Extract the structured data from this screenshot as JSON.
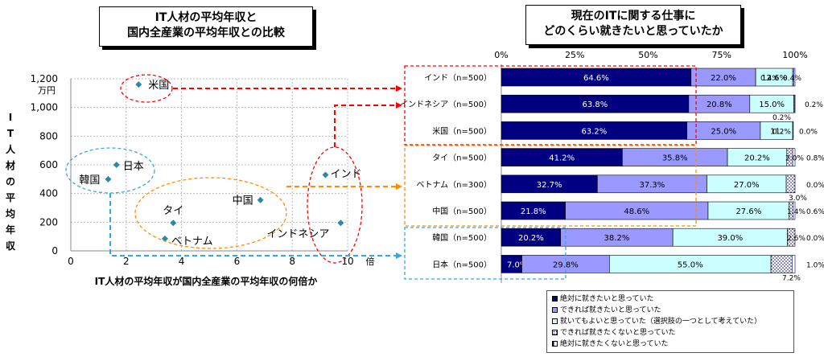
{
  "left_title": {
    "line1": "IT人材の平均年収と",
    "line2": "国内全産業の平均年収との比較"
  },
  "right_title": {
    "line1": "現在のITに関する仕事に",
    "line2": "どのくらい就きたいと思っていたか"
  },
  "chart_data": [
    {
      "type": "scatter",
      "title": "IT人材の平均年収と国内全産業の平均年収との比較",
      "xlabel": "IT人材の平均年収が国内全産業の平均年収の何倍か",
      "x_unit": "倍",
      "ylabel": "IT人材の平均年収",
      "y_unit": "万円",
      "xlim": [
        0,
        10
      ],
      "ylim": [
        0,
        1200
      ],
      "xticks": [
        0,
        2,
        4,
        6,
        8,
        10
      ],
      "yticks": [
        0,
        200,
        400,
        600,
        800,
        1000,
        1200
      ],
      "x_tick_labels": [
        "0",
        "2",
        "4",
        "6",
        "8",
        "10"
      ],
      "y_tick_labels": [
        "0",
        "200",
        "400",
        "600",
        "800",
        "1,000",
        "1,200"
      ],
      "grid": true,
      "color": "#2e86a8",
      "points": [
        {
          "label": "米国",
          "x": 2.45,
          "y": 1160
        },
        {
          "label": "日本",
          "x": 1.65,
          "y": 600
        },
        {
          "label": "韓国",
          "x": 1.35,
          "y": 500
        },
        {
          "label": "インド",
          "x": 9.2,
          "y": 530
        },
        {
          "label": "中国",
          "x": 6.85,
          "y": 355
        },
        {
          "label": "タイ",
          "x": 3.7,
          "y": 195
        },
        {
          "label": "ベトナム",
          "x": 3.4,
          "y": 85
        },
        {
          "label": "インドネシア",
          "x": 9.75,
          "y": 195
        }
      ]
    },
    {
      "type": "bar",
      "orientation": "horizontal",
      "stacked": "100%",
      "title": "現在のITに関する仕事にどのくらい就きたいと思っていたか",
      "xlim": [
        0,
        100
      ],
      "x_tick_labels": [
        "0%",
        "25%",
        "50%",
        "75%",
        "100%"
      ],
      "categories": [
        "インド（n=500）",
        "インドネシア（n=500）",
        "米国（n=500）",
        "タイ（n=500）",
        "ベトナム（n=300）",
        "中国（n=500）",
        "韓国（n=500）",
        "日本（n=500）"
      ],
      "legend_position": "bottom",
      "series": [
        {
          "name": "絶対に就きたいと思っていた",
          "color": "#000080",
          "values": [
            64.6,
            63.8,
            63.2,
            41.2,
            32.7,
            21.8,
            20.2,
            7.0
          ],
          "labels": [
            "64.6%",
            "63.8%",
            "63.2%",
            "41.2%",
            "32.7%",
            "21.8%",
            "20.2%",
            "7.0%"
          ]
        },
        {
          "name": "できれば就きたいと思っていた",
          "color": "#9999ff",
          "values": [
            22.0,
            20.8,
            25.0,
            35.8,
            37.3,
            48.6,
            38.2,
            29.8
          ],
          "labels": [
            "22.0%",
            "20.8%",
            "25.0%",
            "35.8%",
            "37.3%",
            "48.6%",
            "38.2%",
            "29.8%"
          ]
        },
        {
          "name": "就いてもよいと思っていた（選択肢の一つとして考えていた）",
          "color": "#ccffff",
          "values": [
            12.6,
            15.0,
            11.0,
            20.2,
            27.0,
            27.6,
            39.0,
            55.0
          ],
          "labels": [
            "12.6%",
            "15.0%",
            "11.",
            "20.2%",
            "27.0%",
            "27.6%",
            "39.0%",
            "55.0%"
          ]
        },
        {
          "name": "できれば就きたくないと思っていた",
          "color": "dots",
          "values": [
            0.4,
            0.2,
            0.2,
            2.0,
            3.0,
            1.4,
            2.6,
            7.2
          ],
          "labels": [
            "0.4%",
            "0.2%",
            "0.2%",
            "2.0%",
            "3.0%",
            "1.4%",
            "2.6%",
            "7.2%"
          ]
        },
        {
          "name": "絶対に就きたくないと思っていた",
          "color": "#000080",
          "values": [
            0.4,
            0.2,
            0.0,
            0.8,
            0.0,
            0.6,
            0.0,
            1.0
          ],
          "labels": [
            "0.4%",
            "0.2%",
            "0.0%",
            "0.8%",
            "0.0%",
            "0.6%",
            "0.0%",
            "1.0%"
          ]
        }
      ]
    }
  ]
}
